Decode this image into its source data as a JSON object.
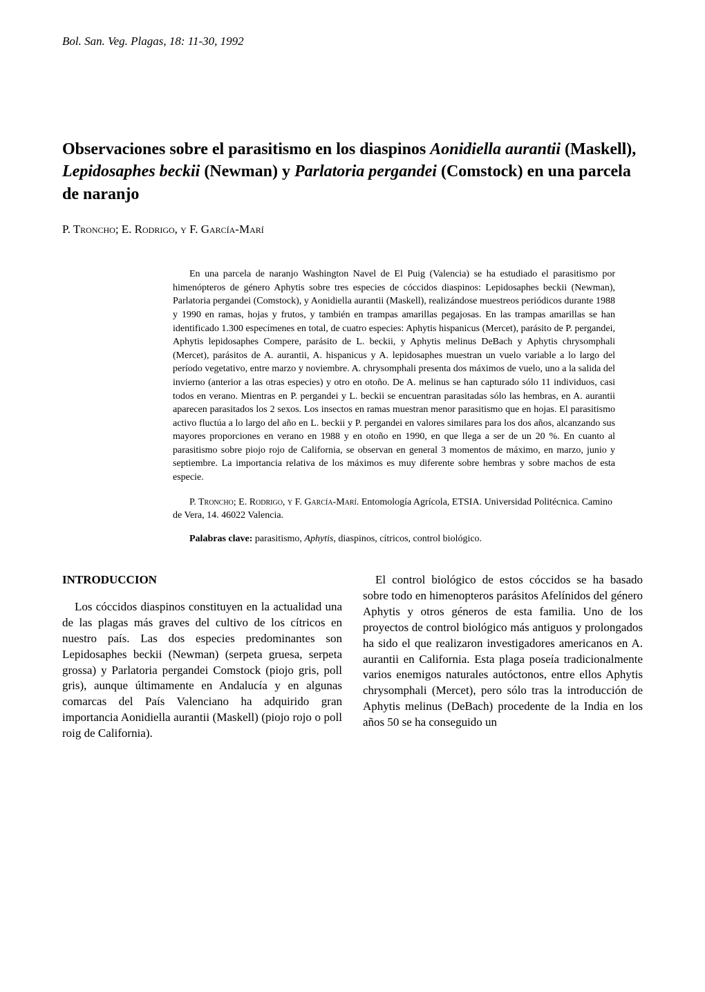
{
  "journal_header": "Bol. San. Veg. Plagas, 18: 11-30, 1992",
  "title_parts": {
    "p1": "Observaciones sobre el parasitismo en los diaspinos ",
    "p2": "Aonidiella aurantii",
    "p3": " (Maskell), ",
    "p4": "Lepidosaphes beckii",
    "p5": " (Newman) y ",
    "p6": "Parlatoria pergandei",
    "p7": " (Comstock) en una parcela de naranjo"
  },
  "authors": "P. Troncho; E. Rodrigo, y F. García-Marí",
  "abstract": "En una parcela de naranjo Washington Navel de El Puig (Valencia) se ha estudiado el parasitismo por himenópteros de género Aphytis sobre tres especies de cóccidos diaspinos: Lepidosaphes beckii (Newman), Parlatoria pergandei (Comstock), y Aonidiella aurantii (Maskell), realizándose muestreos periódicos durante 1988 y 1990 en ramas, hojas y frutos, y también en trampas amarillas pegajosas. En las trampas amarillas se han identificado 1.300 especímenes en total, de cuatro especies: Aphytis hispanicus (Mercet), parásito de P. pergandei, Aphytis lepidosaphes Compere, parásito de L. beckii, y Aphytis melinus DeBach y Aphytis chrysomphali (Mercet), parásitos de A. aurantii, A. hispanicus y A. lepidosaphes muestran un vuelo variable a lo largo del período vegetativo, entre marzo y noviembre. A. chrysomphali presenta dos máximos de vuelo, uno a la salida del invierno (anterior a las otras especies) y otro en otoño. De A. melinus se han capturado sólo 11 individuos, casi todos en verano. Mientras en P. pergandei y L. beckii se encuentran parasitadas sólo las hembras, en A. aurantii aparecen parasitados los 2 sexos. Los insectos en ramas muestran menor parasitismo que en hojas. El parasitismo activo fluctúa a lo largo del año en L. beckii y P. pergandei en valores similares para los dos años, alcanzando sus mayores proporciones en verano en 1988 y en otoño en 1990, en que llega a ser de un 20 %. En cuanto al parasitismo sobre piojo rojo de California, se observan en general 3 momentos de máximo, en marzo, junio y septiembre. La importancia relativa de los máximos es muy diferente sobre hembras y sobre machos de esta especie.",
  "affiliation_authors": "P. Troncho; E. Rodrigo, y F. García-Marí.",
  "affiliation_text": " Entomología Agrícola, ETSIA. Universidad Politécnica. Camino de Vera, 14. 46022 Valencia.",
  "keywords_label": "Palabras clave:",
  "keywords_text_1": " parasitismo, ",
  "keywords_italic": "Aphytis,",
  "keywords_text_2": " diaspinos, cítricos, control biológico.",
  "section_heading": "INTRODUCCION",
  "col1_para": "Los cóccidos diaspinos constituyen en la actualidad una de las plagas más graves del cultivo de los cítricos en nuestro país. Las dos especies predominantes son Lepidosaphes beckii (Newman) (serpeta gruesa, serpeta grossa) y Parlatoria pergandei Comstock (piojo gris, poll gris), aunque últimamente en Andalucía y en algunas comarcas del País Valenciano ha adquirido gran importancia Aonidiella aurantii (Maskell) (piojo rojo o poll roig de California).",
  "col2_para": "El control biológico de estos cóccidos se ha basado sobre todo en himenopteros parásitos Afelínidos del género Aphytis y otros géneros de esta familia. Uno de los proyectos de control biológico más antiguos y prolongados ha sido el que realizaron investigadores americanos en A. aurantii en California. Esta plaga poseía tradicionalmente varios enemigos naturales autóctonos, entre ellos Aphytis chrysomphali (Mercet), pero sólo tras la introducción de Aphytis melinus (DeBach) procedente de la India en los años 50 se ha conseguido un"
}
